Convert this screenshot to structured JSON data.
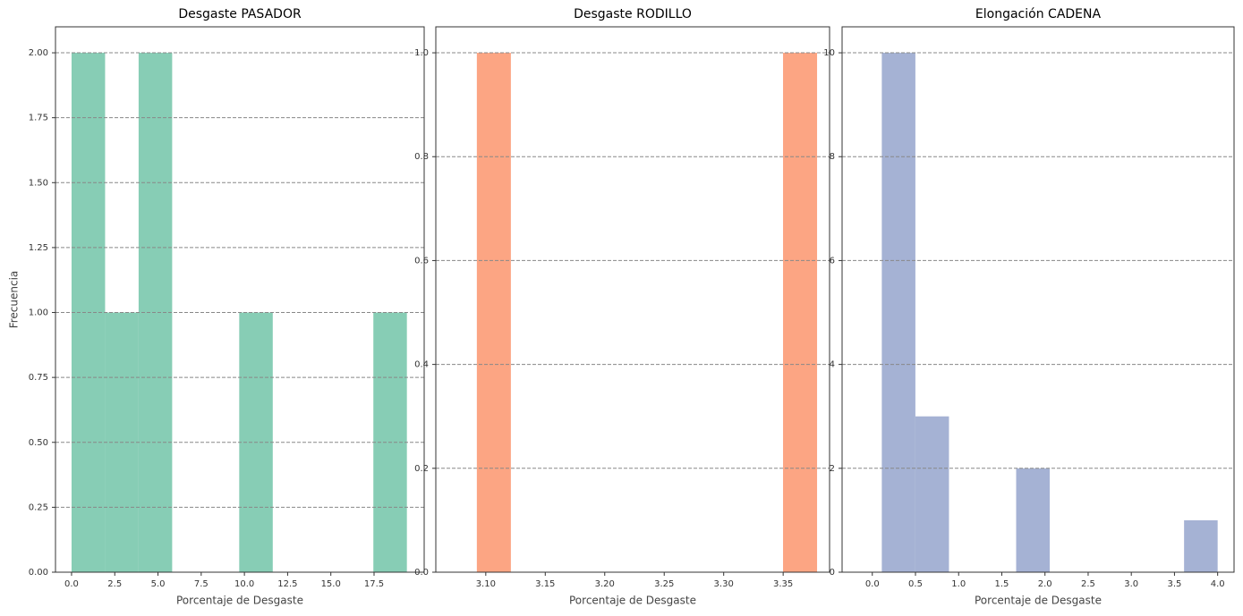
{
  "chart_data": [
    {
      "type": "histogram",
      "title": "Desgaste PASADOR",
      "xlabel": "Porcentaje de Desgaste",
      "ylabel": "Frecuencia",
      "bins": [
        0,
        1.94,
        3.88,
        5.82,
        7.76,
        9.7,
        11.64,
        13.58,
        15.52,
        17.46,
        19.4
      ],
      "counts": [
        2,
        1,
        2,
        0,
        0,
        1,
        0,
        0,
        0,
        1
      ],
      "color": "#87cdb5",
      "xlim": [
        -0.93,
        20.4
      ],
      "ylim": [
        0,
        2.1
      ],
      "xticks": [
        {
          "value": 0,
          "label": "0.0"
        },
        2.5,
        {
          "value": 5,
          "label": "5.0"
        },
        7.5,
        {
          "value": 10,
          "label": "10.0"
        },
        12.5,
        {
          "value": 15,
          "label": "15.0"
        },
        17.5
      ],
      "yticks": [
        {
          "value": 0,
          "label": "0.00"
        },
        {
          "value": 0.25,
          "label": "0.25"
        },
        {
          "value": 0.5,
          "label": "0.50"
        },
        {
          "value": 0.75,
          "label": "0.75"
        },
        {
          "value": 1,
          "label": "1.00"
        },
        {
          "value": 1.25,
          "label": "1.25"
        },
        {
          "value": 1.5,
          "label": "1.50"
        },
        {
          "value": 1.75,
          "label": "1.75"
        },
        {
          "value": 2,
          "label": "2.00"
        }
      ],
      "grid": true
    },
    {
      "type": "histogram",
      "title": "Desgaste RODILLO",
      "xlabel": "Porcentaje de Desgaste",
      "bins": [
        3.0925,
        3.1211,
        3.1497,
        3.1783,
        3.2069,
        3.2355,
        3.2641,
        3.2927,
        3.3213,
        3.3499,
        3.3785
      ],
      "counts": [
        1,
        0,
        0,
        0,
        0,
        0,
        0,
        0,
        0,
        1
      ],
      "color": "#fca583",
      "xlim": [
        3.058,
        3.389
      ],
      "ylim": [
        0,
        1.05
      ],
      "xticks": [
        {
          "value": 3.1,
          "label": "3.10"
        },
        3.15,
        {
          "value": 3.2,
          "label": "3.20"
        },
        3.25,
        {
          "value": 3.3,
          "label": "3.30"
        },
        3.35
      ],
      "yticks": [
        {
          "value": 0,
          "label": "0.0"
        },
        0.2,
        0.4,
        0.6,
        0.8,
        {
          "value": 1,
          "label": "1.0"
        }
      ],
      "grid": true
    },
    {
      "type": "histogram",
      "title": "Elongación CADENA",
      "xlabel": "Porcentaje de Desgaste",
      "bins": [
        0.11,
        0.499,
        0.888,
        1.277,
        1.666,
        2.055,
        2.444,
        2.833,
        3.222,
        3.611,
        4.0
      ],
      "counts": [
        10,
        3,
        0,
        0,
        2,
        0,
        0,
        0,
        0,
        1
      ],
      "color": "#a5b2d4",
      "xlim": [
        -0.35,
        4.19
      ],
      "ylim": [
        0,
        10.5
      ],
      "xticks": [
        {
          "value": 0,
          "label": "0.0"
        },
        0.5,
        {
          "value": 1,
          "label": "1.0"
        },
        1.5,
        {
          "value": 2,
          "label": "2.0"
        },
        2.5,
        {
          "value": 3,
          "label": "3.0"
        },
        3.5,
        {
          "value": 4,
          "label": "4.0"
        }
      ],
      "yticks": [
        0,
        2,
        4,
        6,
        8,
        10
      ],
      "grid": true
    }
  ]
}
